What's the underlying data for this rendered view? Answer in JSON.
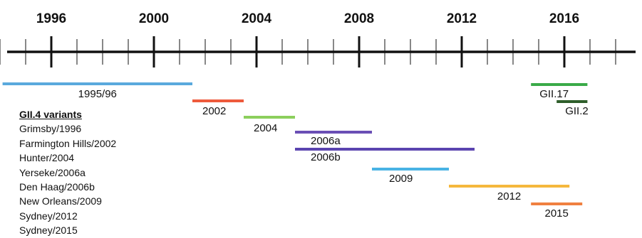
{
  "axis": {
    "years": [
      {
        "label": "1996",
        "value": 1996
      },
      {
        "label": "2000",
        "value": 2000
      },
      {
        "label": "2004",
        "value": 2004
      },
      {
        "label": "2008",
        "value": 2008
      },
      {
        "label": "2012",
        "value": 2012
      },
      {
        "label": "2016",
        "value": 2016
      }
    ],
    "range": [
      1994.0,
      2018.4
    ]
  },
  "bars": [
    {
      "label": "1995/96",
      "start": 1994.1,
      "end": 2001.5,
      "color": "#5aa9dd"
    },
    {
      "label": "2002",
      "start": 2001.5,
      "end": 2003.5,
      "color": "#ee5a3c"
    },
    {
      "label": "2004",
      "start": 2003.5,
      "end": 2005.5,
      "color": "#8ccf5c"
    },
    {
      "label": "2006a",
      "start": 2005.5,
      "end": 2008.5,
      "color": "#6a4fb5"
    },
    {
      "label": "2006b",
      "start": 2005.5,
      "end": 2012.5,
      "color": "#5b44b0"
    },
    {
      "label": "2009",
      "start": 2008.5,
      "end": 2011.5,
      "color": "#49b3e4"
    },
    {
      "label": "2012",
      "start": 2011.5,
      "end": 2016.2,
      "color": "#f5b83d"
    },
    {
      "label": "2015",
      "start": 2014.7,
      "end": 2016.7,
      "color": "#f08040"
    },
    {
      "label": "GII.17",
      "start": 2014.7,
      "end": 2016.9,
      "color": "#3aaa48"
    },
    {
      "label": "GII.2",
      "start": 2015.7,
      "end": 2016.9,
      "color": "#2e5e2a"
    }
  ],
  "legend": {
    "heading": "GII.4 variants",
    "items": [
      "Grimsby/1996",
      "Farmington Hills/2002",
      "Hunter/2004",
      "Yerseke/2006a",
      "Den Haag/2006b",
      "New Orleans/2009",
      "Sydney/2012",
      "Sydney/2015"
    ]
  }
}
